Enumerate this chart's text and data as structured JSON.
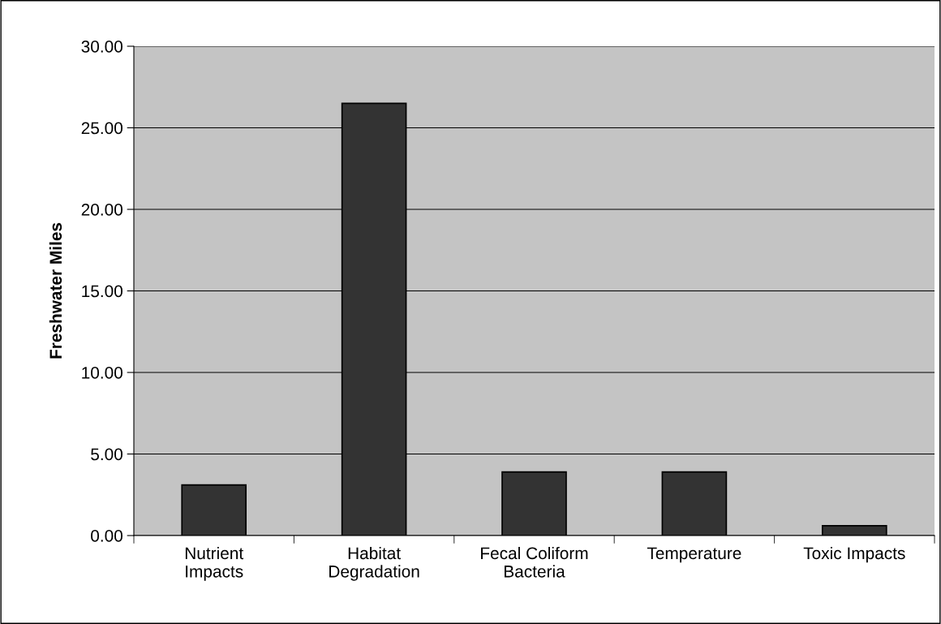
{
  "chart_data": {
    "type": "bar",
    "ylabel": "Freshwater Miles",
    "categories": [
      "Nutrient\nImpacts",
      "Habitat\nDegradation",
      "Fecal Coliform\nBacteria",
      "Temperature",
      "Toxic Impacts"
    ],
    "values": [
      3.1,
      26.5,
      3.9,
      3.9,
      0.6
    ],
    "color": "#333333",
    "ylim": [
      0,
      30
    ],
    "yticks": [
      {
        "value": 0,
        "label": "0.00"
      },
      {
        "value": 5,
        "label": "5.00"
      },
      {
        "value": 10,
        "label": "10.00"
      },
      {
        "value": 15,
        "label": "15.00"
      },
      {
        "value": 20,
        "label": "20.00"
      },
      {
        "value": 25,
        "label": "25.00"
      },
      {
        "value": 30,
        "label": "30.00"
      }
    ],
    "grid": "y"
  }
}
